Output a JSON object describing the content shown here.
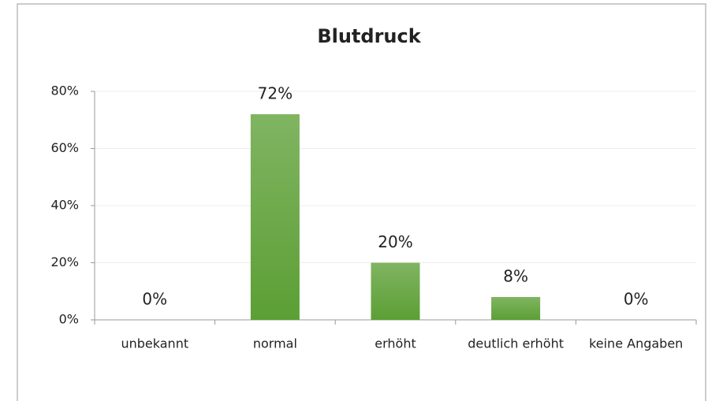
{
  "chart_data": {
    "type": "bar",
    "title": "Blutdruck",
    "categories": [
      "unbekannt",
      "normal",
      "erhöht",
      "deutlich erhöht",
      "keine Angaben"
    ],
    "values": [
      0,
      72,
      20,
      8,
      0
    ],
    "value_labels": [
      "0%",
      "72%",
      "20%",
      "8%",
      "0%"
    ],
    "color": "#5c9f35",
    "ylim": [
      0,
      80
    ],
    "yticks": [
      {
        "value": 0,
        "label": "0%"
      },
      {
        "value": 20,
        "label": "20%"
      },
      {
        "value": 40,
        "label": "40%"
      },
      {
        "value": 60,
        "label": "60%"
      },
      {
        "value": 80,
        "label": "80%"
      }
    ],
    "grid": true
  }
}
